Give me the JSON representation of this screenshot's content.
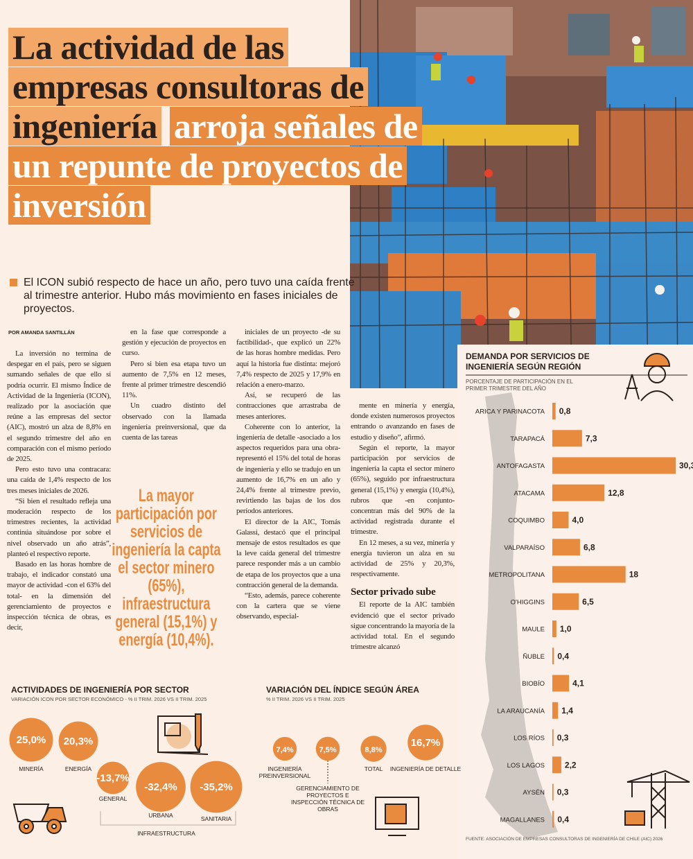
{
  "title": {
    "dark": "La actividad de las empresas consultoras de ingeniería",
    "light": "arroja señales de un repunte de proyectos de inversión"
  },
  "lead": "El ICON subió respecto de hace un año, pero tuvo una caída frente al trimestre anterior. Hubo más movimiento en fases iniciales de proyectos.",
  "byline": "POR AMANDA SANTILLÁN",
  "columns": [
    [
      "La inversión no termina de despegar en el país, pero se siguen sumando señales de que ello sí podría ocurrir. El mismo Índice de Actividad de la Ingeniería (ICON), realizado por la asociación que reúne a las empresas del sector (AIC), mostró un alza de 8,8% en el segundo trimestre del año en comparación con el mismo período de 2025.",
      "Pero esto tuvo una contracara: una caída de 1,4% respecto de los tres meses iniciales de 2026.",
      "“Si bien el resultado refleja una moderación respecto de los trimestres recientes, la actividad continúa situándose por sobre el nivel observado un año atrás”, planteó el respectivo reporte.",
      "Basado en las horas hombre de trabajo, el indicador constató una mayor de actividad -con el 63% del total- en la dimensión del gerenciamiento de proyectos e inspección técnica de obras, es decir,"
    ],
    [
      "en la fase que corresponde a gestión y ejecución de proyectos en curso.",
      "Pero si bien esa etapa tuvo un aumento de 7,5% en 12 meses, frente al primer trimestre descendió 11%.",
      "Un cuadro distinto del observado con la llamada ingeniería preinversional, que da cuenta de las tareas"
    ],
    [
      "iniciales de un proyecto -de su factibilidad-, que explicó un 22% de las horas hombre medidas. Pero aquí la historia fue distinta: mejoró 7,4% respecto de 2025 y 17,9% en relación a enero-marzo.",
      "Así, se recuperó de las contracciones que arrastraba de meses anteriores.",
      "Coherente con lo anterior, la ingeniería de detalle -asociado a los aspectos requeridos para una obra- representó el 15% del total de horas de ingeniería y ello se tradujo en un aumento de 16,7% en un año y 24,4% frente al trimestre previo, revirtiendo las bajas de los dos períodos anteriores.",
      "El director de la AIC, Tomás Galassi, destacó que el principal mensaje de estos resultados es que la leve caída general del trimestre parece responder más a un cambio de etapa de los proyectos que a una contracción general de la demanda.",
      "“Esto, además, parece coherente con la cartera que se viene observando, especial-"
    ]
  ],
  "column4": {
    "before": [
      "mente en minería y energía, donde existen numerosos proyectos entrando o avanzando en fases de estudio y diseño”, afirmó.",
      "Según el reporte, la mayor participación por servicios de ingeniería la capta el sector minero (65%), seguido por infraestructura general (15,1%) y energía (10,4%), rubros que -en conjunto- concentran más del 90% de la actividad registrada durante el trimestre.",
      "En 12 meses, a su vez, minería y energía tuvieron un alza en su actividad de 25% y 20,3%, respectivamente."
    ],
    "subheading": "Sector privado sube",
    "after": [
      "El reporte de la AIC también evidenció que el sector privado sigue concentrando la mayoría de la actividad total. En el segundo trimestre alcanzó"
    ]
  },
  "pull_quote": "La mayor participación por servicios de ingeniería la capta el sector minero (65%), infraestructura general (15,1%) y energía (10,4%).",
  "chart_data": [
    {
      "type": "bar",
      "orientation": "horizontal",
      "title": "DEMANDA POR SERVICIOS DE INGENIERÍA SEGÚN REGIÓN",
      "subtitle": "PORCENTAJE DE PARTICIPACIÓN EN EL PRIMER TRIMESTRE DEL AÑO",
      "categories": [
        "ARICA Y PARINACOTA",
        "TARAPACÁ",
        "ANTOFAGASTA",
        "ATACAMA",
        "COQUIMBO",
        "VALPARAÍSO",
        "METROPOLITANA",
        "O'HIGGINS",
        "MAULE",
        "ÑUBLE",
        "BIOBÍO",
        "LA ARAUCANÍA",
        "LOS RÍOS",
        "LOS LAGOS",
        "AYSÉN",
        "MAGALLANES"
      ],
      "values": [
        0.8,
        7.3,
        30.3,
        12.8,
        4.0,
        6.8,
        18,
        6.5,
        1.0,
        0.4,
        4.1,
        1.4,
        0.3,
        2.2,
        0.3,
        0.4
      ],
      "value_labels": [
        "0,8",
        "7,3",
        "30,3",
        "12,8",
        "4,0",
        "6,8",
        "18",
        "6,5",
        "1,0",
        "0,4",
        "4,1",
        "1,4",
        "0,3",
        "2,2",
        "0,3",
        "0,4"
      ],
      "color": "#e98b3f",
      "source": "FUENTE: ASOCIACIÓN DE EMPRESAS CONSULTORAS DE INGENIERÍA DE CHILE (AIC) 2026"
    },
    {
      "type": "bubble",
      "title": "ACTIVIDADES DE INGENIERÍA POR SECTOR",
      "subtitle": "VARIACIÓN ICON POR SECTOR ECONÓMICO - % II TRIM. 2026 VS II TRIM. 2025",
      "categories": [
        "MINERÍA",
        "ENERGÍA",
        "GENERAL",
        "URBANA",
        "SANITARIA"
      ],
      "values": [
        25.0,
        20.3,
        -13.7,
        -32.4,
        -35.2
      ],
      "value_labels": [
        "25,0%",
        "20,3%",
        "-13,7%",
        "-32,4%",
        "-35,2%"
      ],
      "group_label": "INFRAESTRUCTURA",
      "color": "#e98b3f"
    },
    {
      "type": "bubble",
      "title": "VARIACIÓN DEL ÍNDICE SEGÚN ÁREA",
      "subtitle": "% II TRIM. 2026 VS II TRIM. 2025",
      "categories": [
        "INGENIERÍA PREINVERSIONAL",
        "GERENCIAMIENTO DE PROYECTOS E INSPECCIÓN TÉCNICA DE OBRAS",
        "TOTAL",
        "INGENIERÍA DE DETALLE"
      ],
      "values": [
        7.4,
        7.5,
        8.8,
        16.7
      ],
      "value_labels": [
        "7,4%",
        "7,5%",
        "8,8%",
        "16,7%"
      ],
      "color": "#e98b3f"
    }
  ]
}
